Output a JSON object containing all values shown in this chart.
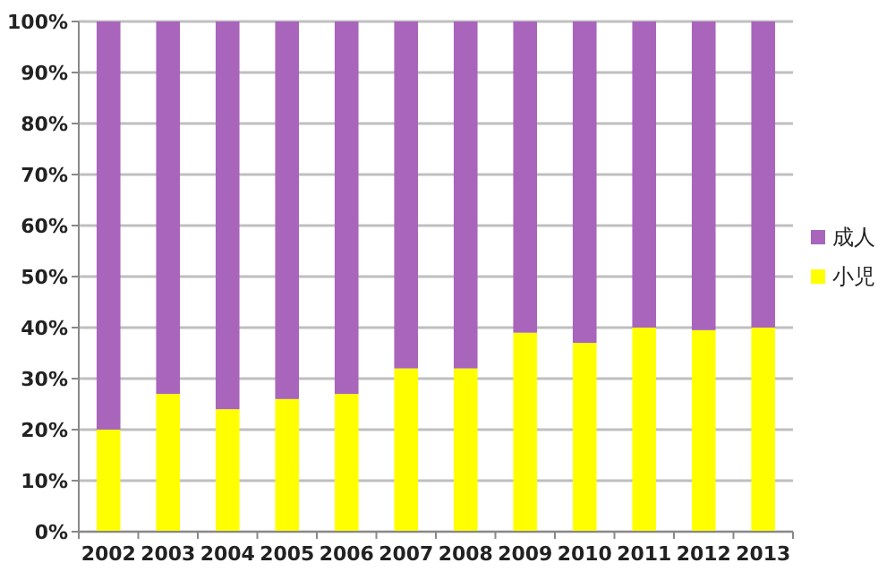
{
  "chart_data": {
    "type": "bar",
    "stacked": true,
    "categories": [
      "2002",
      "2003",
      "2004",
      "2005",
      "2006",
      "2007",
      "2008",
      "2009",
      "2010",
      "2011",
      "2012",
      "2013"
    ],
    "series": [
      {
        "name": "小児",
        "color": "#ffff00",
        "values": [
          20,
          27,
          24,
          26,
          27,
          32,
          32,
          39,
          37,
          40,
          39.5,
          40
        ]
      },
      {
        "name": "成人",
        "color": "#a865bb",
        "values": [
          80,
          73,
          76,
          74,
          73,
          68,
          68,
          61,
          63,
          60,
          60.5,
          60
        ]
      }
    ],
    "ylim": [
      0,
      100
    ],
    "yticks": [
      {
        "value": 0,
        "label": "0%"
      },
      {
        "value": 10,
        "label": "10%"
      },
      {
        "value": 20,
        "label": "20%"
      },
      {
        "value": 30,
        "label": "30%"
      },
      {
        "value": 40,
        "label": "40%"
      },
      {
        "value": 50,
        "label": "50%"
      },
      {
        "value": 60,
        "label": "60%"
      },
      {
        "value": 70,
        "label": "70%"
      },
      {
        "value": 80,
        "label": "80%"
      },
      {
        "value": 90,
        "label": "90%"
      },
      {
        "value": 100,
        "label": "100%"
      }
    ],
    "grid": "y",
    "legend": "right"
  }
}
